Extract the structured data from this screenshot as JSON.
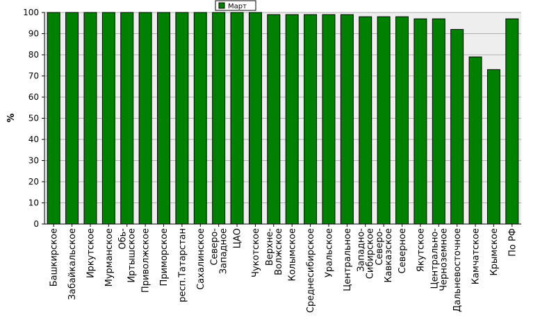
{
  "chart_data": {
    "type": "bar",
    "ylabel": "%",
    "ylim": [
      0,
      100
    ],
    "yticks": [
      0,
      10,
      20,
      30,
      40,
      50,
      60,
      70,
      80,
      90,
      100
    ],
    "grid": true,
    "legend_position": "top-center",
    "categories": [
      "Башкирское",
      "Забайкальское",
      "Иркутское",
      "Мурманское",
      "Обь-Иртышское",
      "Приволжское",
      "Приморское",
      "респ.Татарстан",
      "Сахалинское",
      "Северо-Западное",
      "ЦАО",
      "Чукотское",
      "Верхне-Волжское",
      "Колымское",
      "Среднесибирское",
      "Уральское",
      "Центральное",
      "Западно-Сибирское",
      "Северо-Кавказское",
      "Северное",
      "Якутское",
      "Центрально-Черноземное",
      "Дальневосточное",
      "Камчатское",
      "Крымское",
      "По РФ"
    ],
    "series": [
      {
        "name": "Март",
        "color": "#008000",
        "values": [
          100,
          100,
          100,
          100,
          100,
          100,
          100,
          100,
          100,
          100,
          100,
          100,
          99,
          99,
          99,
          99,
          99,
          98,
          98,
          98,
          97,
          97,
          92,
          79,
          73,
          97
        ]
      }
    ]
  },
  "colors": {
    "plot_background": "#eeeeee",
    "grid": "#b0b0b0",
    "bar_fill": "#008000",
    "bar_stroke": "#000000"
  }
}
